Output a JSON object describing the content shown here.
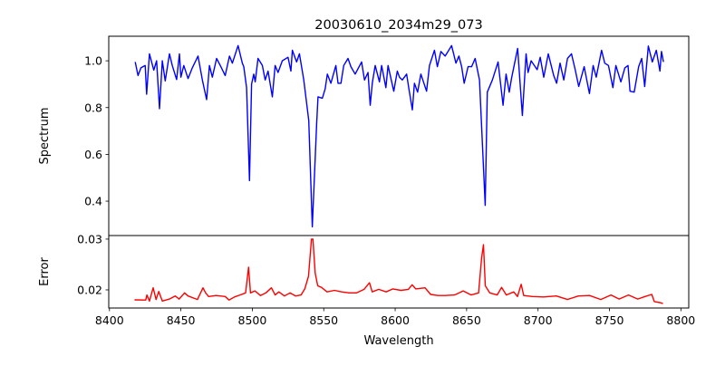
{
  "chart_data": [
    {
      "type": "line",
      "title": "20030610_2034m29_073",
      "xlabel": "",
      "ylabel": "Spectrum",
      "xlim": [
        8399.5,
        8805.5
      ],
      "ylim": [
        0.253,
        1.105
      ],
      "yticks": [
        0.4,
        0.6,
        0.8,
        1.0
      ],
      "ytick_labels": [
        "0.4",
        "0.6",
        "0.8",
        "1.0"
      ],
      "grid": false,
      "series": [
        {
          "name": "spectrum",
          "color": "#0000ff",
          "x": [
            8418,
            8420,
            8422,
            8425,
            8426,
            8428,
            8431,
            8433,
            8435,
            8437,
            8439,
            8442,
            8444,
            8447,
            8449,
            8450,
            8452,
            8455,
            8458,
            8462,
            8465,
            8468,
            8470,
            8472,
            8475,
            8478,
            8481,
            8484,
            8486,
            8490,
            8493,
            8494,
            8496,
            8498,
            8499.5,
            8501,
            8502,
            8504,
            8507,
            8509,
            8511,
            8514,
            8516,
            8518,
            8521,
            8525,
            8527,
            8528,
            8531,
            8533,
            8536,
            8539.5,
            8542,
            8545,
            8546,
            8549,
            8551,
            8552.5,
            8555,
            8558.5,
            8560,
            8562,
            8564,
            8567,
            8569,
            8572,
            8576.5,
            8578.5,
            8581,
            8582.5,
            8584,
            8586,
            8589,
            8590.5,
            8593.5,
            8595,
            8599,
            8601.5,
            8603,
            8605,
            8608,
            8609.5,
            8612,
            8613.5,
            8615.7,
            8618,
            8622,
            8624,
            8627.5,
            8629.5,
            8632,
            8635,
            8637,
            8639.5,
            8642.5,
            8644.6,
            8646.5,
            8648.3,
            8651,
            8653.5,
            8656,
            8659,
            8663,
            8664.5,
            8668,
            8672,
            8675.5,
            8677.6,
            8679.8,
            8681.4,
            8685.7,
            8689,
            8691.6,
            8693,
            8695.2,
            8699.4,
            8701.5,
            8704,
            8707.2,
            8711,
            8713,
            8715.4,
            8718,
            8720.6,
            8723.4,
            8726,
            8728.5,
            8732.3,
            8736,
            8738.6,
            8740.7,
            8744.5,
            8746.7,
            8749.3,
            8752.4,
            8754.5,
            8758,
            8760.8,
            8763,
            8764.4,
            8767.3,
            8770.4,
            8772.6,
            8774.7,
            8777.2,
            8780,
            8782.8,
            8785.3,
            8786.4,
            8787.8
          ],
          "y": [
            0.995,
            0.937,
            0.97,
            0.98,
            0.857,
            1.03,
            0.96,
            1.0,
            0.795,
            1.0,
            0.914,
            1.03,
            0.98,
            0.92,
            1.03,
            0.93,
            0.98,
            0.924,
            0.97,
            1.02,
            0.918,
            0.834,
            0.98,
            0.93,
            1.01,
            0.975,
            0.937,
            1.02,
            0.99,
            1.065,
            0.99,
            0.975,
            0.885,
            0.488,
            0.9,
            0.943,
            0.91,
            1.01,
            0.98,
            0.918,
            0.956,
            0.846,
            0.98,
            0.95,
            1.0,
            1.015,
            0.956,
            1.045,
            0.995,
            1.03,
            0.918,
            0.745,
            0.29,
            0.73,
            0.846,
            0.84,
            0.88,
            0.943,
            0.904,
            0.98,
            0.904,
            0.904,
            0.98,
            1.01,
            0.975,
            0.943,
            0.995,
            0.918,
            0.95,
            0.81,
            0.904,
            0.98,
            0.91,
            0.98,
            0.885,
            0.98,
            0.87,
            0.956,
            0.93,
            0.918,
            0.943,
            0.885,
            0.79,
            0.904,
            0.866,
            0.943,
            0.87,
            0.98,
            1.045,
            0.975,
            1.04,
            1.02,
            1.04,
            1.065,
            0.99,
            1.02,
            0.975,
            0.904,
            0.975,
            0.975,
            1.01,
            0.918,
            0.382,
            0.866,
            0.918,
            0.995,
            0.81,
            0.943,
            0.866,
            0.924,
            1.053,
            0.766,
            1.03,
            0.95,
            1.0,
            0.962,
            1.015,
            0.93,
            1.03,
            0.937,
            0.904,
            0.99,
            0.918,
            1.01,
            1.03,
            0.962,
            0.89,
            0.975,
            0.86,
            0.98,
            0.93,
            1.045,
            0.99,
            0.98,
            0.885,
            0.98,
            0.91,
            0.97,
            0.98,
            0.87,
            0.866,
            0.975,
            1.01,
            0.89,
            1.063,
            0.995,
            1.045,
            0.956,
            1.04,
            0.995
          ]
        }
      ]
    },
    {
      "type": "line",
      "title": "",
      "xlabel": "Wavelength",
      "ylabel": "Error",
      "xlim": [
        8399.5,
        8805.5
      ],
      "ylim": [
        0.01643,
        0.0307
      ],
      "xticks": [
        8400,
        8450,
        8500,
        8550,
        8600,
        8650,
        8700,
        8750,
        8800
      ],
      "xtick_labels": [
        "8400",
        "8450",
        "8500",
        "8550",
        "8600",
        "8650",
        "8700",
        "8750",
        "8800"
      ],
      "yticks": [
        0.02,
        0.03
      ],
      "ytick_labels": [
        "0.02",
        "0.03"
      ],
      "grid": false,
      "series": [
        {
          "name": "error",
          "color": "#ff0000",
          "x": [
            8417.6,
            8425.4,
            8426.2,
            8428,
            8430.6,
            8432.6,
            8434.5,
            8437,
            8442,
            8446,
            8448.7,
            8452.6,
            8455,
            8461.6,
            8465.5,
            8467.3,
            8469.4,
            8474.6,
            8481,
            8483.7,
            8487.5,
            8491.4,
            8495.3,
            8497.4,
            8498.7,
            8501.8,
            8505.7,
            8509.5,
            8513.4,
            8516,
            8518.6,
            8522.5,
            8526.4,
            8530.3,
            8534.1,
            8536.7,
            8539.3,
            8541.4,
            8542.4,
            8544,
            8545.8,
            8548.4,
            8552.3,
            8557.5,
            8562.6,
            8567.8,
            8573,
            8578.2,
            8582,
            8583.9,
            8588.5,
            8593.7,
            8598.4,
            8604,
            8609.2,
            8611.8,
            8614.4,
            8620.9,
            8624.8,
            8630,
            8635.1,
            8641.6,
            8647.6,
            8653.2,
            8658.4,
            8660.5,
            8661.8,
            8663.1,
            8666.2,
            8671.4,
            8674.5,
            8677.8,
            8683,
            8685.6,
            8688.2,
            8690,
            8696,
            8703.8,
            8712.8,
            8720.6,
            8728.3,
            8736.1,
            8743.9,
            8751.1,
            8756.8,
            8763.3,
            8769.8,
            8774.9,
            8779.6,
            8781.4,
            8785.3,
            8787.4
          ],
          "y": [
            0.01804,
            0.018,
            0.019,
            0.0178,
            0.0204,
            0.0181,
            0.0197,
            0.0178,
            0.0182,
            0.0188,
            0.0182,
            0.0194,
            0.0188,
            0.0181,
            0.0204,
            0.0194,
            0.0187,
            0.0189,
            0.0187,
            0.018,
            0.0186,
            0.019,
            0.0194,
            0.02446,
            0.0194,
            0.0198,
            0.0189,
            0.0194,
            0.0204,
            0.019,
            0.0196,
            0.0188,
            0.0194,
            0.0188,
            0.019,
            0.0202,
            0.02268,
            0.03,
            0.03,
            0.0233,
            0.0208,
            0.0205,
            0.0196,
            0.0199,
            0.0196,
            0.0194,
            0.0194,
            0.0201,
            0.0214,
            0.0196,
            0.0201,
            0.0196,
            0.0202,
            0.0199,
            0.0201,
            0.021,
            0.0202,
            0.0204,
            0.0191,
            0.0189,
            0.0189,
            0.019,
            0.0198,
            0.019,
            0.0194,
            0.02625,
            0.0289,
            0.0208,
            0.0194,
            0.019,
            0.0205,
            0.019,
            0.0196,
            0.0187,
            0.0211,
            0.0189,
            0.0187,
            0.0186,
            0.0188,
            0.0181,
            0.0188,
            0.0189,
            0.0181,
            0.019,
            0.0182,
            0.019,
            0.0182,
            0.0187,
            0.0191,
            0.0177,
            0.0175,
            0.0173
          ]
        }
      ]
    }
  ]
}
